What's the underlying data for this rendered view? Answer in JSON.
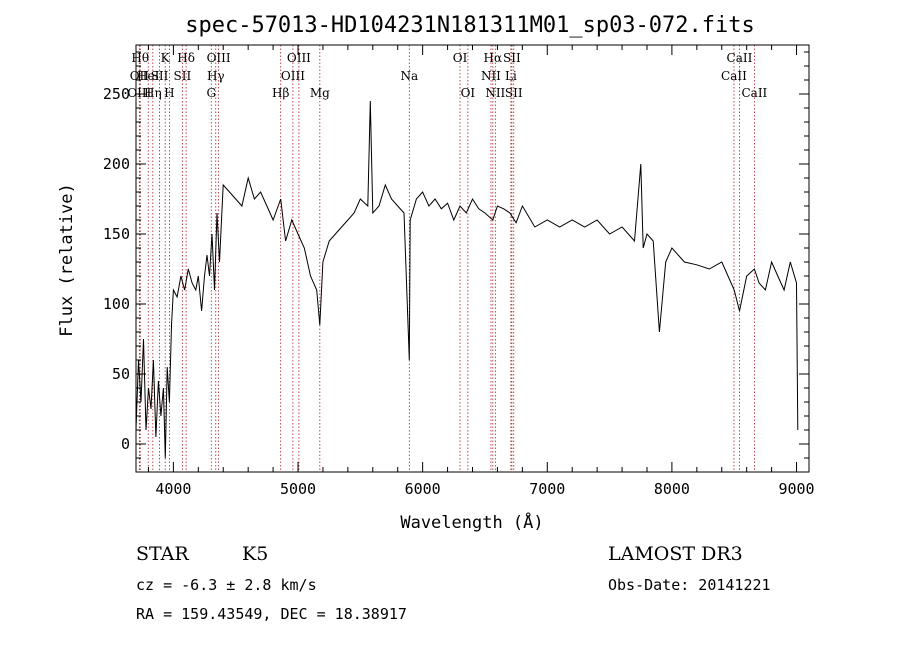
{
  "chart_data": {
    "type": "line",
    "title": "spec-57013-HD104231N181311M01_sp03-072.fits",
    "xlabel": "Wavelength (Å)",
    "ylabel": "Flux (relative)",
    "xlim": [
      3700,
      9100
    ],
    "ylim": [
      -20,
      285
    ],
    "xticks": [
      "4000",
      "5000",
      "6000",
      "7000",
      "8000",
      "9000"
    ],
    "yticks": [
      "0",
      "50",
      "100",
      "150",
      "200",
      "250"
    ],
    "grid": false,
    "series": [
      {
        "x": [
          3700,
          3720,
          3740,
          3760,
          3780,
          3800,
          3820,
          3840,
          3860,
          3880,
          3900,
          3920,
          3935,
          3950,
          3968,
          3985,
          4000,
          4030,
          4060,
          4090,
          4120,
          4150,
          4180,
          4200,
          4226,
          4250,
          4270,
          4290,
          4310,
          4330,
          4350,
          4370,
          4400,
          4450,
          4500,
          4550,
          4600,
          4650,
          4700,
          4750,
          4800,
          4861,
          4900,
          4950,
          5000,
          5050,
          5100,
          5150,
          5175,
          5200,
          5250,
          5300,
          5350,
          5400,
          5450,
          5500,
          5560,
          5580,
          5600,
          5650,
          5700,
          5750,
          5800,
          5850,
          5893,
          5900,
          5950,
          6000,
          6050,
          6100,
          6150,
          6200,
          6250,
          6300,
          6350,
          6400,
          6450,
          6500,
          6563,
          6600,
          6650,
          6700,
          6750,
          6800,
          6900,
          7000,
          7100,
          7200,
          7300,
          7400,
          7500,
          7600,
          7700,
          7750,
          7770,
          7800,
          7850,
          7900,
          7950,
          8000,
          8100,
          8200,
          8300,
          8400,
          8450,
          8500,
          8542,
          8600,
          8662,
          8700,
          8750,
          8800,
          8850,
          8900,
          8950,
          9000,
          9010
        ],
        "y": [
          10,
          60,
          30,
          75,
          10,
          40,
          25,
          60,
          5,
          45,
          20,
          40,
          -10,
          55,
          30,
          85,
          110,
          105,
          120,
          110,
          125,
          115,
          110,
          120,
          95,
          120,
          135,
          120,
          150,
          110,
          165,
          130,
          185,
          180,
          175,
          170,
          190,
          175,
          180,
          170,
          160,
          175,
          145,
          160,
          150,
          140,
          120,
          110,
          85,
          130,
          145,
          150,
          155,
          160,
          165,
          175,
          170,
          245,
          165,
          170,
          185,
          175,
          170,
          165,
          60,
          160,
          175,
          180,
          170,
          175,
          168,
          172,
          160,
          170,
          165,
          175,
          168,
          165,
          160,
          170,
          168,
          165,
          158,
          170,
          155,
          160,
          155,
          160,
          155,
          160,
          150,
          155,
          145,
          200,
          140,
          150,
          145,
          80,
          130,
          140,
          130,
          128,
          125,
          130,
          120,
          110,
          95,
          120,
          125,
          115,
          110,
          130,
          120,
          110,
          130,
          115,
          10
        ]
      }
    ],
    "annotations": [
      {
        "x": 3734,
        "row": 0,
        "label": "Hθ"
      },
      {
        "x": 3727,
        "row": 1,
        "label": "OII"
      },
      {
        "x": 3727,
        "row": 2,
        "label": "OIII"
      },
      {
        "x": 3798,
        "row": 1,
        "label": "HeI"
      },
      {
        "x": 3835,
        "row": 2,
        "label": "Hη"
      },
      {
        "x": 3934,
        "row": 0,
        "label": "K"
      },
      {
        "x": 3889,
        "row": 1,
        "label": "SII"
      },
      {
        "x": 3968,
        "row": 2,
        "label": "H"
      },
      {
        "x": 4102,
        "row": 0,
        "label": "Hδ"
      },
      {
        "x": 4072,
        "row": 1,
        "label": "SII"
      },
      {
        "x": 4363,
        "row": 0,
        "label": "OIII"
      },
      {
        "x": 4340,
        "row": 1,
        "label": "Hγ"
      },
      {
        "x": 4304,
        "row": 2,
        "label": "G"
      },
      {
        "x": 4861,
        "row": 2,
        "label": "Hβ"
      },
      {
        "x": 5007,
        "row": 0,
        "label": "OIII"
      },
      {
        "x": 4959,
        "row": 1,
        "label": "OIII"
      },
      {
        "x": 5175,
        "row": 2,
        "label": "Mg"
      },
      {
        "x": 5893,
        "row": 1,
        "label": "Na"
      },
      {
        "x": 6300,
        "row": 0,
        "label": "OI"
      },
      {
        "x": 6363,
        "row": 2,
        "label": "OI"
      },
      {
        "x": 6563,
        "row": 0,
        "label": "Hα"
      },
      {
        "x": 6548,
        "row": 1,
        "label": "NII"
      },
      {
        "x": 6583,
        "row": 2,
        "label": "NII"
      },
      {
        "x": 6716,
        "row": 0,
        "label": "SII"
      },
      {
        "x": 6708,
        "row": 1,
        "label": "Li"
      },
      {
        "x": 6731,
        "row": 2,
        "label": "SII"
      },
      {
        "x": 8498,
        "row": 1,
        "label": "CaII"
      },
      {
        "x": 8542,
        "row": 0,
        "label": "CaII"
      },
      {
        "x": 8662,
        "row": 2,
        "label": "CaII"
      }
    ]
  },
  "info": {
    "class": "STAR",
    "subclass": "K5",
    "survey": "LAMOST DR3",
    "redshift": "cz = -6.3 ± 2.8 km/s",
    "obs_date": "Obs-Date: 20141221",
    "coords": "RA = 159.43549, DEC =  18.38917"
  },
  "colors": {
    "line_marker": "#aa2222",
    "spectrum": "#000000"
  }
}
